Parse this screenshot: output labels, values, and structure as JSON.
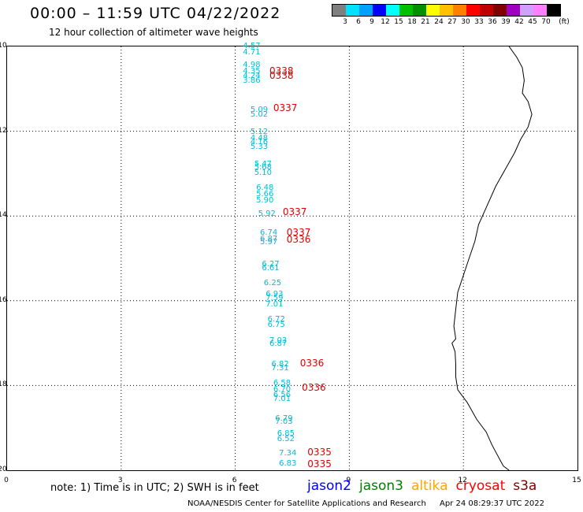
{
  "header": {
    "title": "00:00 – 11:59 UTC 04/22/2022",
    "subtitle": "12 hour collection of altimeter wave heights"
  },
  "legend": {
    "colors": [
      "#7f7f7f",
      "#00e0ff",
      "#00a0ff",
      "#0000ff",
      "#00ffff",
      "#00c000",
      "#009000",
      "#ffff00",
      "#ffc000",
      "#ff8000",
      "#ff0000",
      "#c00000",
      "#800000",
      "#a000c0",
      "#d0a0ff",
      "#ff80ff",
      "#000000"
    ],
    "labels": [
      "3",
      "6",
      "9",
      "12",
      "15",
      "18",
      "21",
      "24",
      "27",
      "30",
      "33",
      "36",
      "39",
      "42",
      "45",
      "70"
    ],
    "unit": "(ft)"
  },
  "axes": {
    "y_ticks": [
      "-10",
      "-12",
      "-14",
      "-16",
      "-18",
      "-20"
    ],
    "x_ticks": [
      "0",
      "3",
      "6",
      "9",
      "12",
      "15"
    ],
    "xlim": [
      0,
      15
    ],
    "ylim": [
      -20,
      -10
    ]
  },
  "observations": [
    {
      "lon": 6.2,
      "lat": -10.0,
      "swh": "4.57"
    },
    {
      "lon": 6.2,
      "lat": -10.15,
      "swh": "4.71"
    },
    {
      "lon": 6.2,
      "lat": -10.45,
      "swh": "4.98"
    },
    {
      "lon": 6.2,
      "lat": -10.6,
      "swh": "4.35"
    },
    {
      "lon": 6.2,
      "lat": -10.7,
      "swh": "4.24"
    },
    {
      "lon": 6.2,
      "lat": -10.82,
      "swh": "3.86"
    },
    {
      "lon": 6.4,
      "lat": -11.5,
      "swh": "5.09"
    },
    {
      "lon": 6.4,
      "lat": -11.62,
      "swh": "5.02"
    },
    {
      "lon": 6.4,
      "lat": -12.02,
      "swh": "5.12"
    },
    {
      "lon": 6.4,
      "lat": -12.18,
      "swh": "4.48"
    },
    {
      "lon": 6.4,
      "lat": -12.26,
      "swh": "4.16"
    },
    {
      "lon": 6.4,
      "lat": -12.38,
      "swh": "5.33"
    },
    {
      "lon": 6.5,
      "lat": -12.78,
      "swh": "5.47"
    },
    {
      "lon": 6.5,
      "lat": -12.86,
      "swh": "5.68"
    },
    {
      "lon": 6.5,
      "lat": -13.0,
      "swh": "5.10"
    },
    {
      "lon": 6.55,
      "lat": -13.35,
      "swh": "6.48"
    },
    {
      "lon": 6.55,
      "lat": -13.5,
      "swh": "5.66"
    },
    {
      "lon": 6.55,
      "lat": -13.65,
      "swh": "5.90"
    },
    {
      "lon": 6.6,
      "lat": -13.95,
      "swh": "5.92"
    },
    {
      "lon": 6.65,
      "lat": -14.4,
      "swh": "6.74"
    },
    {
      "lon": 6.65,
      "lat": -14.55,
      "swh": "6.87"
    },
    {
      "lon": 6.65,
      "lat": -14.62,
      "swh": "5.97"
    },
    {
      "lon": 6.7,
      "lat": -15.15,
      "swh": "6.27"
    },
    {
      "lon": 6.7,
      "lat": -15.25,
      "swh": "6.61"
    },
    {
      "lon": 6.75,
      "lat": -15.6,
      "swh": "6.25"
    },
    {
      "lon": 6.8,
      "lat": -15.85,
      "swh": "6.93"
    },
    {
      "lon": 6.8,
      "lat": -15.95,
      "swh": "7.59"
    },
    {
      "lon": 6.8,
      "lat": -16.1,
      "swh": "7.01"
    },
    {
      "lon": 6.85,
      "lat": -16.45,
      "swh": "6.72"
    },
    {
      "lon": 6.85,
      "lat": -16.57,
      "swh": "6.75"
    },
    {
      "lon": 6.9,
      "lat": -16.95,
      "swh": "7.03"
    },
    {
      "lon": 6.9,
      "lat": -17.03,
      "swh": "6.87"
    },
    {
      "lon": 6.95,
      "lat": -17.5,
      "swh": "6.82"
    },
    {
      "lon": 6.95,
      "lat": -17.6,
      "swh": "7.31"
    },
    {
      "lon": 7.0,
      "lat": -17.95,
      "swh": "6.58"
    },
    {
      "lon": 7.0,
      "lat": -18.1,
      "swh": "6.70"
    },
    {
      "lon": 7.0,
      "lat": -18.23,
      "swh": "6.56"
    },
    {
      "lon": 7.0,
      "lat": -18.32,
      "swh": "7.01"
    },
    {
      "lon": 7.05,
      "lat": -18.8,
      "swh": "6.79"
    },
    {
      "lon": 7.05,
      "lat": -18.86,
      "swh": "7.03"
    },
    {
      "lon": 7.1,
      "lat": -19.15,
      "swh": "6.85"
    },
    {
      "lon": 7.1,
      "lat": -19.28,
      "swh": "6.52"
    },
    {
      "lon": 7.15,
      "lat": -19.6,
      "swh": "7.34"
    },
    {
      "lon": 7.15,
      "lat": -19.85,
      "swh": "6.83"
    }
  ],
  "passes": [
    {
      "lon": 6.9,
      "lat": -10.58,
      "label": "0338"
    },
    {
      "lon": 6.9,
      "lat": -10.68,
      "label": "0338"
    },
    {
      "lon": 7.0,
      "lat": -11.45,
      "label": "0337"
    },
    {
      "lon": 7.25,
      "lat": -13.9,
      "label": "0337"
    },
    {
      "lon": 7.35,
      "lat": -14.38,
      "label": "0337"
    },
    {
      "lon": 7.35,
      "lat": -14.55,
      "label": "0336"
    },
    {
      "lon": 7.7,
      "lat": -17.48,
      "label": "0336"
    },
    {
      "lon": 7.75,
      "lat": -18.05,
      "label": "0336"
    },
    {
      "lon": 7.9,
      "lat": -19.58,
      "label": "0335"
    },
    {
      "lon": 7.9,
      "lat": -19.85,
      "label": "0335"
    }
  ],
  "coastline": [
    [
      13.2,
      -10.0
    ],
    [
      13.4,
      -10.25
    ],
    [
      13.55,
      -10.5
    ],
    [
      13.6,
      -10.8
    ],
    [
      13.55,
      -11.1
    ],
    [
      13.7,
      -11.3
    ],
    [
      13.8,
      -11.6
    ],
    [
      13.7,
      -11.9
    ],
    [
      13.5,
      -12.2
    ],
    [
      13.35,
      -12.5
    ],
    [
      13.1,
      -12.9
    ],
    [
      12.85,
      -13.3
    ],
    [
      12.6,
      -13.8
    ],
    [
      12.4,
      -14.2
    ],
    [
      12.3,
      -14.6
    ],
    [
      12.15,
      -15.0
    ],
    [
      12.0,
      -15.4
    ],
    [
      11.85,
      -15.8
    ],
    [
      11.8,
      -16.2
    ],
    [
      11.75,
      -16.6
    ],
    [
      11.8,
      -16.9
    ],
    [
      11.7,
      -17.0
    ],
    [
      11.78,
      -17.2
    ],
    [
      11.8,
      -17.5
    ],
    [
      11.8,
      -17.8
    ],
    [
      11.85,
      -18.1
    ],
    [
      12.1,
      -18.4
    ],
    [
      12.35,
      -18.8
    ],
    [
      12.6,
      -19.1
    ],
    [
      12.75,
      -19.4
    ],
    [
      12.9,
      -19.65
    ],
    [
      13.05,
      -19.9
    ],
    [
      13.2,
      -20.0
    ]
  ],
  "footer": {
    "note": "note:  1) Time is in UTC;  2) SWH is in feet",
    "satellites": [
      {
        "name": "jason2",
        "color": "#0000ff"
      },
      {
        "name": "jason3",
        "color": "#008000"
      },
      {
        "name": "altika",
        "color": "#ffa500"
      },
      {
        "name": "cryosat",
        "color": "#ff0000"
      },
      {
        "name": "s3a",
        "color": "#800000"
      }
    ],
    "credit": "NOAA/NESDIS Center for Satellite Applications and Research",
    "timestamp": "Apr 24 08:29:37 UTC 2022"
  }
}
